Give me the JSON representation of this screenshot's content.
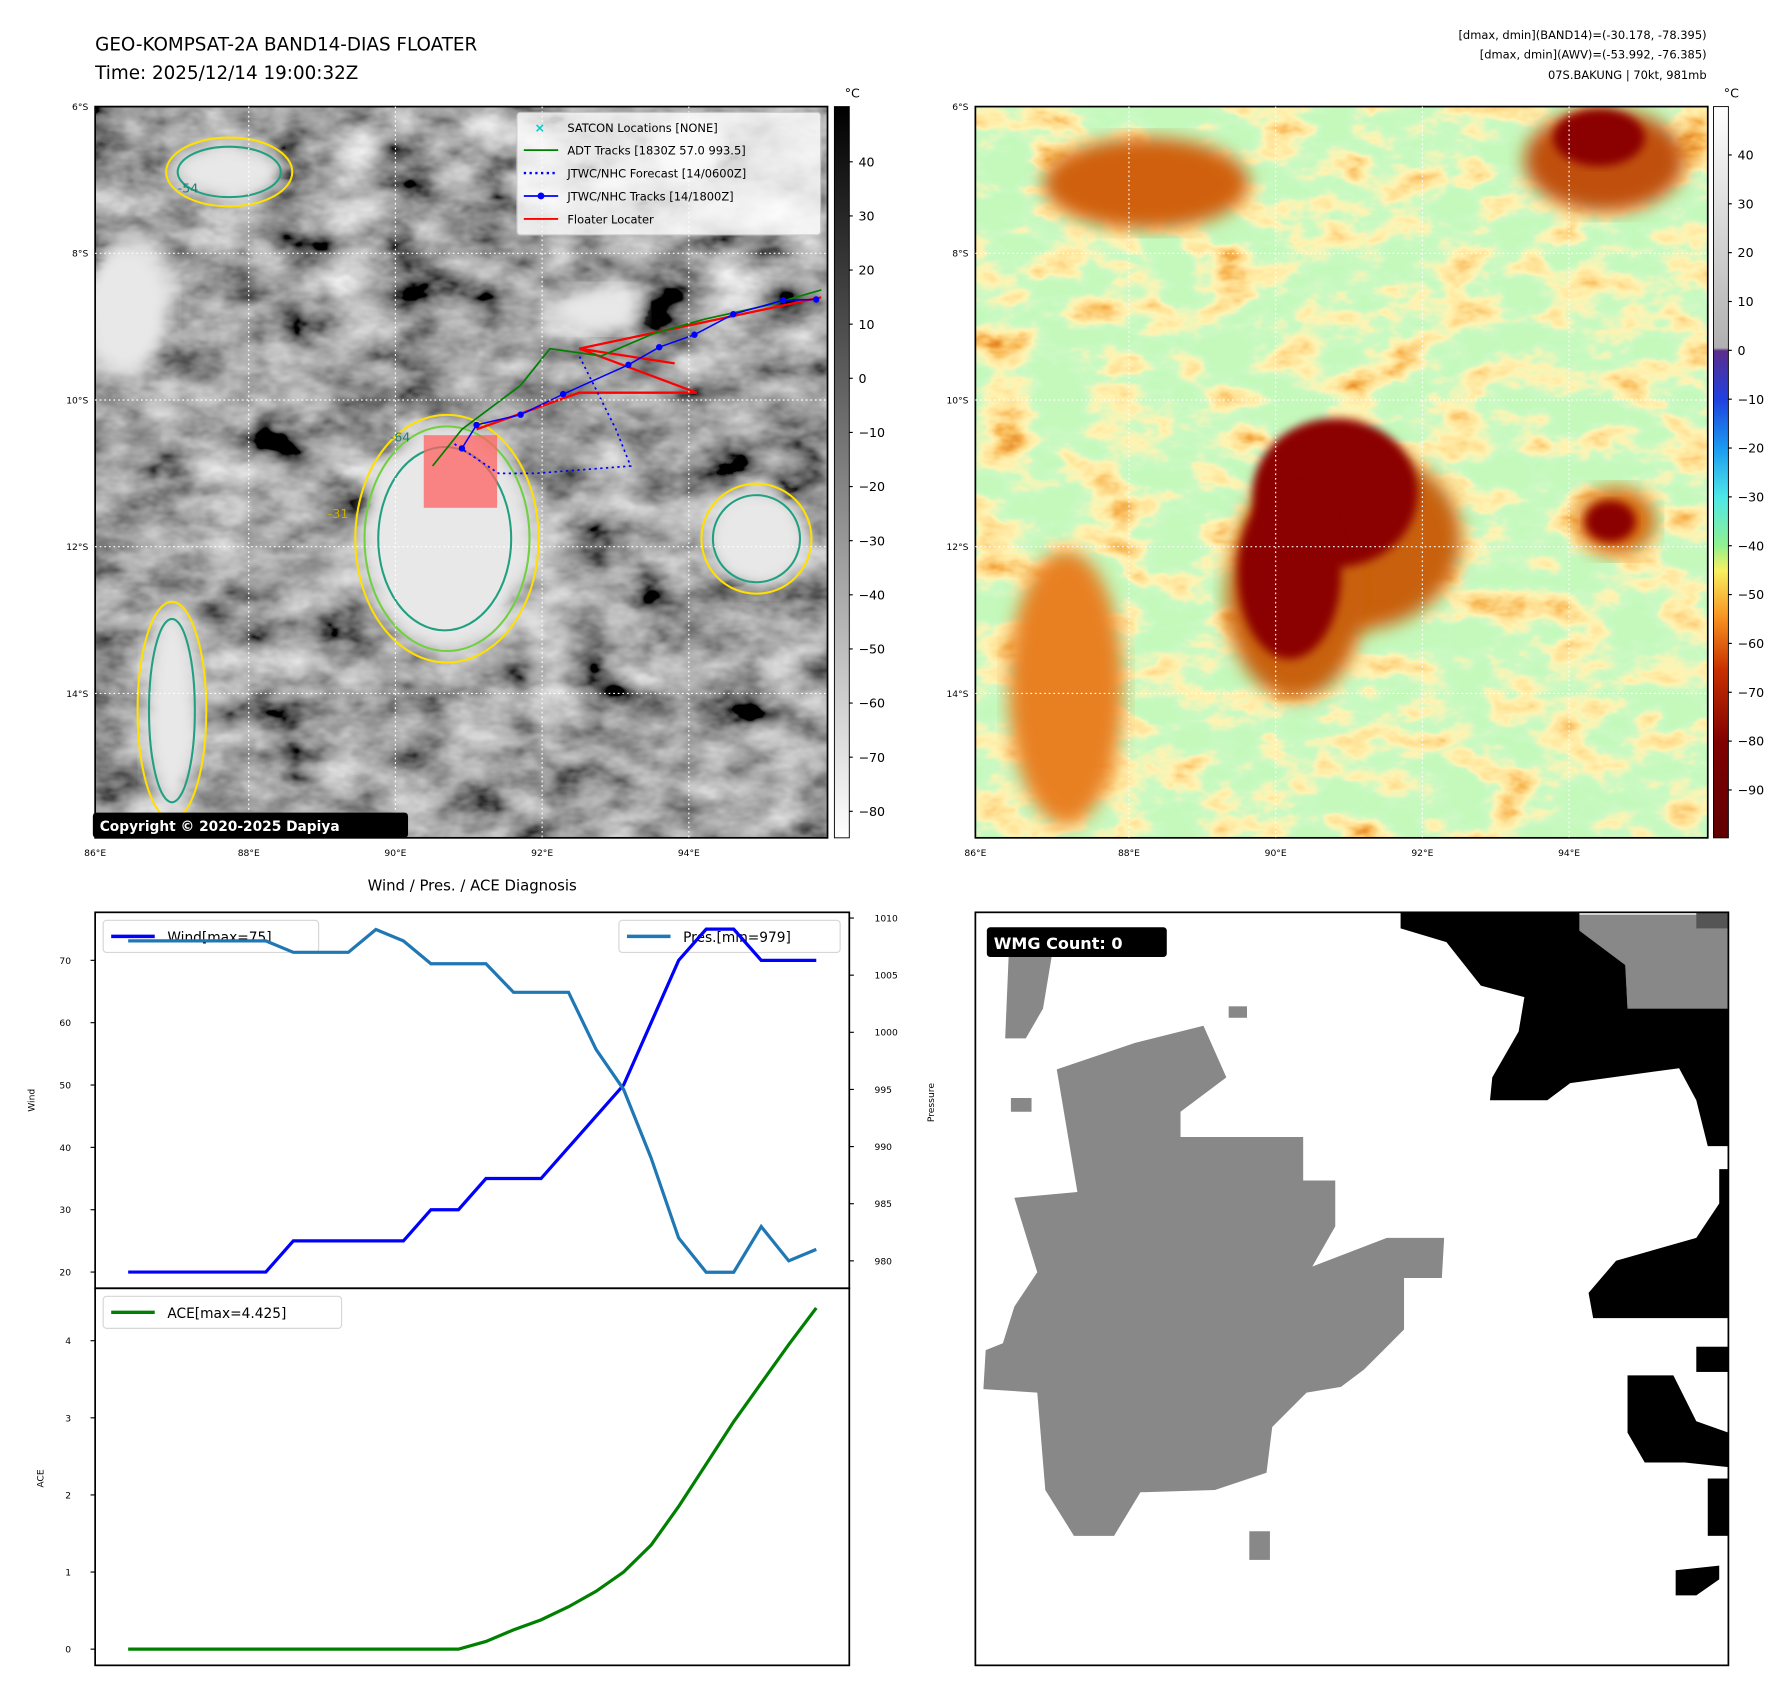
{
  "header": {
    "title_line1": "GEO-KOMPSAT-2A BAND14-DIAS FLOATER",
    "title_line2": "Time: 2025/12/14 19:00:32Z",
    "stats_line1": "[dmax, dmin](BAND14)=(-30.178, -78.395)",
    "stats_line2": "[dmax, dmin](AWV)=(-53.992, -76.385)",
    "stats_line3": "07S.BAKUNG | 70kt, 981mb"
  },
  "map": {
    "lat_ticks": [
      "6°S",
      "8°S",
      "10°S",
      "12°S",
      "14°S"
    ],
    "lon_ticks": [
      "86°E",
      "88°E",
      "90°E",
      "92°E",
      "94°E"
    ],
    "copyright": "Copyright © 2020-2025 Dapiya",
    "contour_labels": [
      "-31",
      "-54",
      "-64"
    ],
    "legend": [
      {
        "label": "SATCON Locations [NONE]",
        "color": "#00c8c8",
        "style": "x"
      },
      {
        "label": "ADT Tracks [1830Z 57.0 993.5]",
        "color": "#008000",
        "style": "solid"
      },
      {
        "label": "JTWC/NHC Forecast [14/0600Z]",
        "color": "#0000ff",
        "style": "dotted"
      },
      {
        "label": "JTWC/NHC Tracks [14/1800Z]",
        "color": "#0000ff",
        "style": "dot-line"
      },
      {
        "label": "Floater Locater",
        "color": "#ff0000",
        "style": "solid"
      }
    ],
    "tracks": {
      "jtwc": [
        [
          95.83,
          8.63
        ],
        [
          95.38,
          8.64
        ],
        [
          94.7,
          8.83
        ],
        [
          94.17,
          9.11
        ],
        [
          93.69,
          9.28
        ],
        [
          93.27,
          9.52
        ],
        [
          92.38,
          9.92
        ],
        [
          91.8,
          10.2
        ],
        [
          91.2,
          10.34
        ],
        [
          91.0,
          10.66
        ]
      ],
      "forecast": [
        [
          90.9,
          10.6
        ],
        [
          91.5,
          11.0
        ],
        [
          92.0,
          11.0
        ],
        [
          93.3,
          10.9
        ],
        [
          93.1,
          10.4
        ],
        [
          92.8,
          9.8
        ],
        [
          92.6,
          9.4
        ]
      ],
      "adt": [
        [
          90.6,
          10.9
        ],
        [
          91.0,
          10.4
        ],
        [
          91.8,
          9.8
        ],
        [
          92.2,
          9.3
        ],
        [
          92.9,
          9.4
        ],
        [
          93.6,
          9.1
        ],
        [
          94.3,
          8.9
        ],
        [
          95.2,
          8.7
        ],
        [
          95.9,
          8.5
        ]
      ],
      "floater": [
        [
          91.2,
          10.4
        ],
        [
          92.6,
          9.9
        ],
        [
          94.2,
          9.9
        ],
        [
          92.6,
          9.3
        ],
        [
          93.9,
          9.5
        ],
        [
          92.6,
          9.3
        ],
        [
          95.9,
          8.6
        ]
      ],
      "floater_box": [
        90.48,
        10.48,
        91.48,
        11.47
      ]
    }
  },
  "colorbar_left": {
    "unit": "°C",
    "ticks": [
      "40",
      "30",
      "20",
      "10",
      "0",
      "−10",
      "−20",
      "−30",
      "−40",
      "−50",
      "−60",
      "−70",
      "−80"
    ],
    "values": [
      40,
      30,
      20,
      10,
      0,
      -10,
      -20,
      -30,
      -40,
      -50,
      -60,
      -70,
      -80
    ],
    "range": [
      50.2,
      -84.9
    ]
  },
  "colorbar_right": {
    "unit": "°C",
    "ticks": [
      "40",
      "30",
      "20",
      "10",
      "0",
      "−10",
      "−20",
      "−30",
      "−40",
      "−50",
      "−60",
      "−70",
      "−80",
      "−90"
    ],
    "values": [
      40,
      30,
      20,
      10,
      0,
      -10,
      -20,
      -30,
      -40,
      -50,
      -60,
      -70,
      -80,
      -90
    ],
    "range": [
      49.9,
      -99.8
    ]
  },
  "wmg": {
    "label": "WMG Count: 0"
  },
  "chart_data": {
    "type": "line",
    "title": "Wind / Pres. / ACE Diagnosis",
    "x": [
      0,
      1,
      2,
      3,
      4,
      5,
      6,
      7,
      8,
      9,
      10,
      11,
      12,
      13,
      14,
      15,
      16,
      17,
      18,
      19,
      20,
      21,
      22,
      23,
      24,
      25
    ],
    "series": [
      {
        "name": "Wind[max=75]",
        "axis": "wind",
        "color": "#0000ff",
        "values": [
          20,
          20,
          20,
          20,
          20,
          20,
          25,
          25,
          25,
          25,
          25,
          30,
          30,
          35,
          35,
          35,
          40,
          45,
          50,
          60,
          70,
          75,
          75,
          70,
          70,
          70
        ]
      },
      {
        "name": "Pres.[min=979]",
        "axis": "pressure",
        "color": "#1f77b4",
        "values": [
          1008,
          1008,
          1008,
          1008,
          1008,
          1008,
          1007,
          1007,
          1007,
          1009,
          1008,
          1006,
          1006,
          1006,
          1003.5,
          1003.5,
          1003.5,
          998.5,
          995,
          989,
          982,
          979,
          979,
          983,
          980,
          981
        ]
      },
      {
        "name": "ACE[max=4.425]",
        "axis": "ace",
        "color": "#008000",
        "values": [
          0,
          0,
          0,
          0,
          0,
          0,
          0,
          0,
          0,
          0,
          0,
          0,
          0,
          0.1,
          0.25,
          0.38,
          0.55,
          0.75,
          1.0,
          1.35,
          1.85,
          2.4,
          2.95,
          3.45,
          3.95,
          4.425
        ]
      }
    ],
    "ylabel_wind": "Wind",
    "ylabel_pressure": "Pressure",
    "ylabel_ace": "ACE",
    "wind_ticks": [
      20,
      30,
      40,
      50,
      60,
      70
    ],
    "pressure_ticks": [
      980,
      985,
      990,
      995,
      1000,
      1005,
      1010
    ],
    "ace_ticks": [
      0,
      1,
      2,
      3,
      4
    ],
    "wind_ylim": [
      17.4,
      77.7
    ],
    "pressure_ylim": [
      977.6,
      1010.5
    ],
    "ace_ylim": [
      -0.21,
      4.68
    ],
    "xlim": [
      -1.2,
      26.2
    ],
    "grid": false,
    "legend_placement": [
      "top-left",
      "top-right",
      "top-left"
    ]
  }
}
